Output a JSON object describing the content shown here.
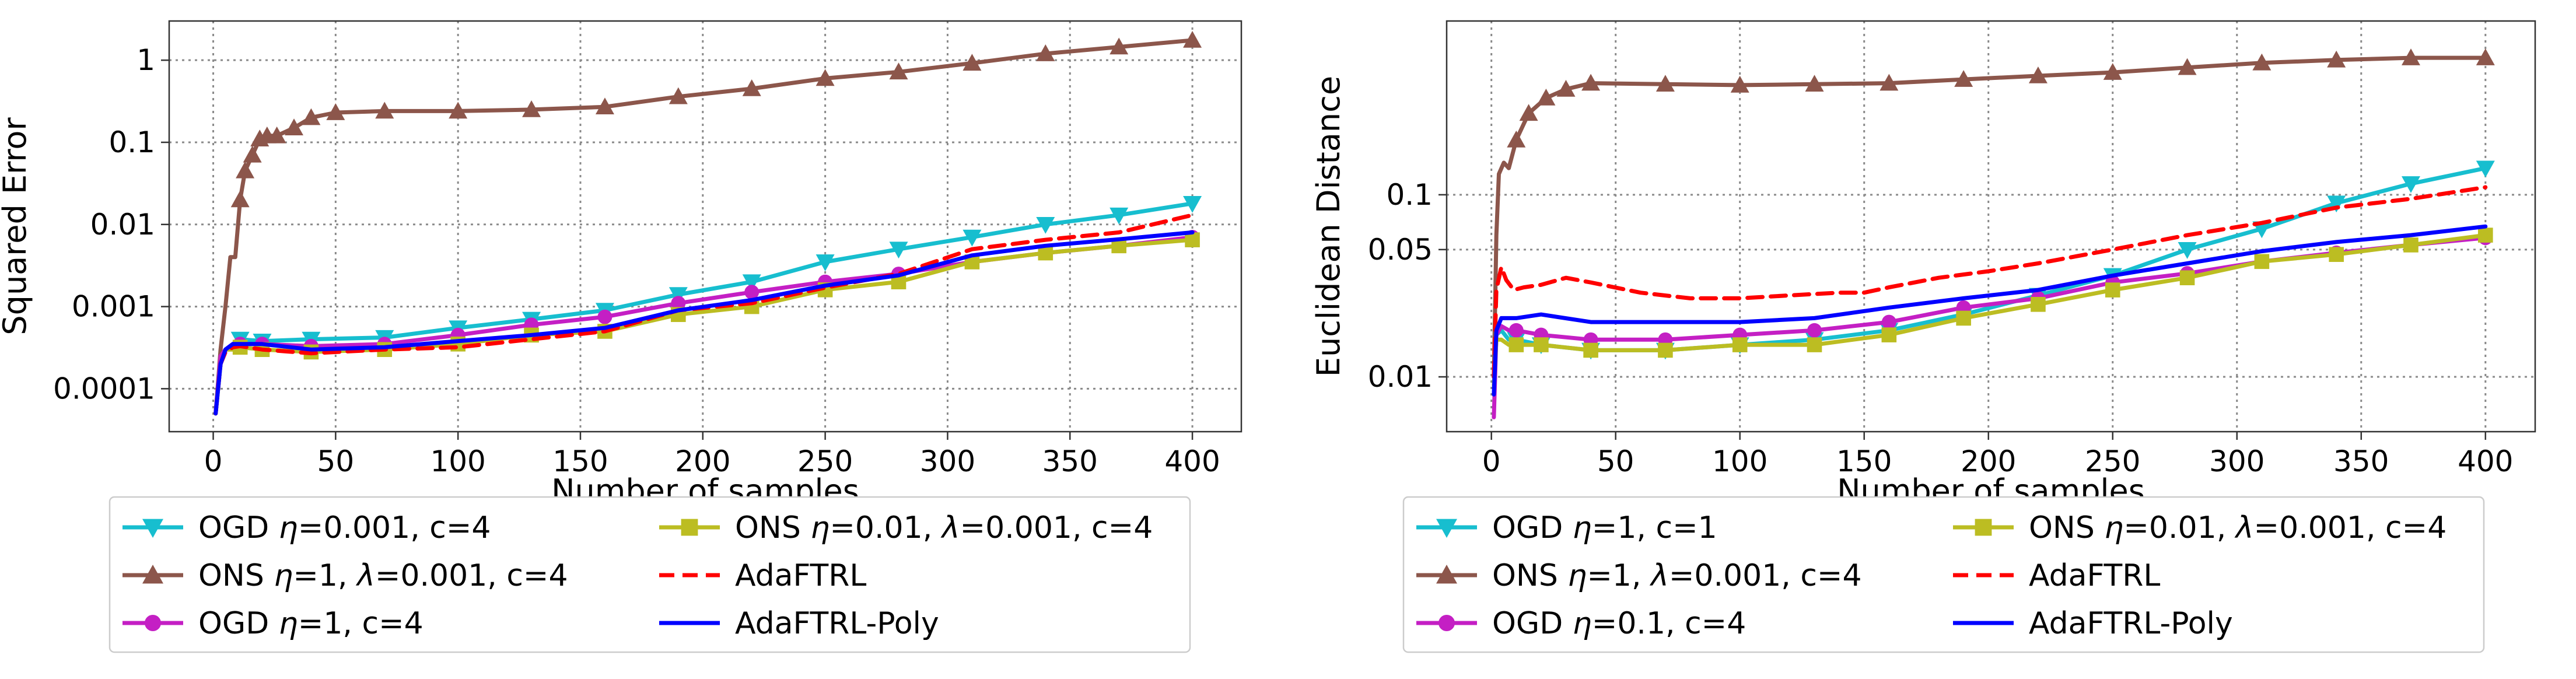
{
  "chart_data": [
    {
      "type": "line",
      "yscale": "log",
      "xlabel": "Number of samples",
      "ylabel": "Squared Error",
      "xlim": [
        -18,
        420
      ],
      "ylim": [
        3e-05,
        3
      ],
      "xticks": [
        0,
        50,
        100,
        150,
        200,
        250,
        300,
        350,
        400
      ],
      "xtick_labels": [
        "0",
        "50",
        "100",
        "150",
        "200",
        "250",
        "300",
        "350",
        "400"
      ],
      "yticks": [
        0.0001,
        0.001,
        0.01,
        0.1,
        1
      ],
      "ytick_labels": [
        "0.0001",
        "0.001",
        "0.01",
        "0.1",
        "1"
      ],
      "grid": true,
      "legend_position": "below",
      "series": [
        {
          "name": "OGD η=0.001, c=4",
          "color": "#17becf",
          "marker": "triangle-down",
          "dash": "solid",
          "x": [
            1,
            3,
            5,
            8,
            11,
            20,
            40,
            70,
            100,
            130,
            160,
            190,
            220,
            250,
            280,
            310,
            340,
            370,
            400
          ],
          "y": [
            5e-05,
            0.0002,
            0.0003,
            0.00035,
            0.0004,
            0.00038,
            0.0004,
            0.00042,
            0.00055,
            0.0007,
            0.0009,
            0.0014,
            0.002,
            0.0035,
            0.005,
            0.007,
            0.01,
            0.013,
            0.018
          ]
        },
        {
          "name": "ONS η=1, λ=0.001, c=4",
          "color": "#8c564b",
          "marker": "triangle-up",
          "dash": "solid",
          "x": [
            1,
            3,
            5,
            7,
            9,
            11,
            13,
            16,
            19,
            22,
            26,
            33,
            40,
            50,
            70,
            100,
            130,
            160,
            190,
            220,
            250,
            280,
            310,
            340,
            370,
            400
          ],
          "y": [
            5e-05,
            0.0003,
            0.001,
            0.004,
            0.004,
            0.02,
            0.045,
            0.07,
            0.11,
            0.12,
            0.12,
            0.15,
            0.2,
            0.23,
            0.24,
            0.24,
            0.25,
            0.27,
            0.36,
            0.45,
            0.6,
            0.72,
            0.92,
            1.2,
            1.45,
            1.75
          ]
        },
        {
          "name": "OGD η=1, c=4",
          "color": "#c41fc4",
          "marker": "circle",
          "dash": "solid",
          "x": [
            1,
            3,
            5,
            8,
            11,
            20,
            40,
            70,
            100,
            130,
            160,
            190,
            220,
            250,
            280,
            310,
            340,
            370,
            400
          ],
          "y": [
            5e-05,
            0.00025,
            0.0003,
            0.00035,
            0.00035,
            0.00035,
            0.00033,
            0.00035,
            0.00045,
            0.0006,
            0.00075,
            0.0011,
            0.0015,
            0.002,
            0.0025,
            0.0035,
            0.0045,
            0.0055,
            0.007
          ]
        },
        {
          "name": "ONS η=0.01, λ=0.001, c=4",
          "color": "#bcbd22",
          "marker": "square",
          "dash": "solid",
          "x": [
            1,
            3,
            5,
            8,
            11,
            20,
            40,
            70,
            100,
            130,
            160,
            190,
            220,
            250,
            280,
            310,
            340,
            370,
            400
          ],
          "y": [
            5e-05,
            0.0002,
            0.0003,
            0.0003,
            0.00032,
            0.0003,
            0.00028,
            0.0003,
            0.00035,
            0.00045,
            0.0005,
            0.0008,
            0.001,
            0.0016,
            0.002,
            0.0035,
            0.0045,
            0.0055,
            0.0065
          ]
        },
        {
          "name": "AdaFTRL",
          "color": "#ff0000",
          "marker": "none",
          "dash": "dashed",
          "x": [
            1,
            3,
            5,
            8,
            11,
            20,
            40,
            70,
            100,
            130,
            160,
            190,
            220,
            250,
            280,
            310,
            340,
            370,
            400
          ],
          "y": [
            5e-05,
            0.0002,
            0.00028,
            0.00032,
            0.00033,
            0.0003,
            0.00027,
            0.0003,
            0.00032,
            0.0004,
            0.0005,
            0.0009,
            0.0011,
            0.0017,
            0.0025,
            0.005,
            0.0065,
            0.008,
            0.013
          ]
        },
        {
          "name": "AdaFTRL-Poly",
          "color": "#0000ff",
          "marker": "none",
          "dash": "solid",
          "x": [
            1,
            3,
            5,
            8,
            11,
            20,
            40,
            70,
            100,
            130,
            160,
            190,
            220,
            250,
            280,
            310,
            340,
            370,
            400
          ],
          "y": [
            5e-05,
            0.0002,
            0.0003,
            0.00035,
            0.00035,
            0.00035,
            0.0003,
            0.00032,
            0.00038,
            0.00045,
            0.00055,
            0.0009,
            0.0012,
            0.0018,
            0.0024,
            0.0042,
            0.0055,
            0.0066,
            0.008
          ]
        }
      ]
    },
    {
      "type": "line",
      "yscale": "log",
      "xlabel": "Number of samples",
      "ylabel": "Euclidean Distance",
      "xlim": [
        -18,
        420
      ],
      "ylim": [
        0.005,
        0.9
      ],
      "xticks": [
        0,
        50,
        100,
        150,
        200,
        250,
        300,
        350,
        400
      ],
      "xtick_labels": [
        "0",
        "50",
        "100",
        "150",
        "200",
        "250",
        "300",
        "350",
        "400"
      ],
      "yticks": [
        0.01,
        0.05,
        0.1
      ],
      "ytick_labels": [
        "0.01",
        "0.05",
        "0.1"
      ],
      "grid": true,
      "legend_position": "below",
      "series": [
        {
          "name": "OGD η=1, c=1",
          "color": "#17becf",
          "marker": "triangle-down",
          "dash": "solid",
          "x": [
            1,
            2,
            4,
            7,
            10,
            20,
            40,
            70,
            100,
            130,
            160,
            190,
            220,
            250,
            280,
            310,
            340,
            370,
            400
          ],
          "y": [
            0.009,
            0.017,
            0.018,
            0.016,
            0.016,
            0.015,
            0.014,
            0.014,
            0.015,
            0.016,
            0.018,
            0.022,
            0.028,
            0.036,
            0.05,
            0.065,
            0.09,
            0.115,
            0.14
          ]
        },
        {
          "name": "ONS η=1, λ=0.001, c=4",
          "color": "#8c564b",
          "marker": "triangle-up",
          "dash": "solid",
          "x": [
            1,
            2,
            3,
            5,
            7,
            10,
            15,
            22,
            30,
            40,
            70,
            100,
            130,
            160,
            190,
            220,
            250,
            280,
            310,
            340,
            370,
            400
          ],
          "y": [
            0.01,
            0.06,
            0.13,
            0.15,
            0.14,
            0.2,
            0.28,
            0.34,
            0.38,
            0.41,
            0.405,
            0.4,
            0.405,
            0.41,
            0.43,
            0.45,
            0.47,
            0.5,
            0.53,
            0.55,
            0.565,
            0.565
          ]
        },
        {
          "name": "OGD η=0.1, c=4",
          "color": "#c41fc4",
          "marker": "circle",
          "dash": "solid",
          "x": [
            1,
            2,
            4,
            7,
            10,
            20,
            40,
            70,
            100,
            130,
            160,
            190,
            220,
            250,
            280,
            310,
            340,
            370,
            400
          ],
          "y": [
            0.006,
            0.017,
            0.019,
            0.018,
            0.018,
            0.017,
            0.016,
            0.016,
            0.017,
            0.018,
            0.02,
            0.024,
            0.027,
            0.033,
            0.037,
            0.043,
            0.048,
            0.053,
            0.058
          ]
        },
        {
          "name": "ONS η=0.01, λ=0.001, c=4",
          "color": "#bcbd22",
          "marker": "square",
          "dash": "solid",
          "x": [
            1,
            2,
            4,
            7,
            10,
            20,
            40,
            70,
            100,
            130,
            160,
            190,
            220,
            250,
            280,
            310,
            340,
            370,
            400
          ],
          "y": [
            0.009,
            0.016,
            0.016,
            0.015,
            0.015,
            0.015,
            0.014,
            0.014,
            0.015,
            0.015,
            0.017,
            0.021,
            0.025,
            0.03,
            0.035,
            0.043,
            0.047,
            0.053,
            0.06
          ]
        },
        {
          "name": "AdaFTRL",
          "color": "#ff0000",
          "marker": "none",
          "dash": "dashed",
          "x": [
            1,
            2,
            4,
            6,
            9,
            13,
            20,
            30,
            40,
            60,
            80,
            100,
            120,
            140,
            150,
            160,
            180,
            200,
            220,
            250,
            280,
            310,
            340,
            370,
            400
          ],
          "y": [
            0.01,
            0.03,
            0.04,
            0.034,
            0.03,
            0.031,
            0.032,
            0.035,
            0.033,
            0.029,
            0.027,
            0.027,
            0.028,
            0.029,
            0.029,
            0.031,
            0.035,
            0.038,
            0.042,
            0.05,
            0.06,
            0.07,
            0.085,
            0.095,
            0.11
          ]
        },
        {
          "name": "AdaFTRL-Poly",
          "color": "#0000ff",
          "marker": "none",
          "dash": "solid",
          "x": [
            1,
            2,
            4,
            7,
            10,
            20,
            40,
            70,
            100,
            130,
            160,
            190,
            220,
            250,
            280,
            310,
            340,
            370,
            400
          ],
          "y": [
            0.008,
            0.018,
            0.021,
            0.021,
            0.021,
            0.022,
            0.02,
            0.02,
            0.02,
            0.021,
            0.024,
            0.027,
            0.03,
            0.036,
            0.042,
            0.049,
            0.055,
            0.06,
            0.067
          ]
        }
      ]
    }
  ]
}
